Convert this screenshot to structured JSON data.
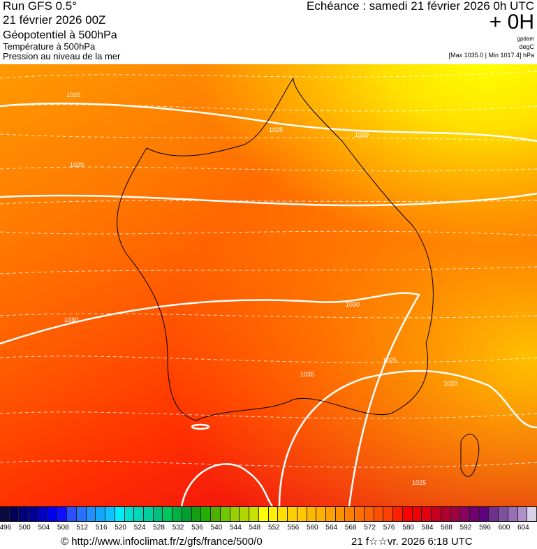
{
  "header": {
    "run": "Run GFS 0.5°",
    "date": "21 février 2026 00Z",
    "param1": "Géopotentiel à 500hPa",
    "param2": "Température à 500hPa",
    "param3": "Pression au niveau de la mer",
    "echeance": "Echéance : samedi 21 février 2026 0h UTC",
    "offset": "+ 0H",
    "unit1": "gpdam",
    "unit2": "degC",
    "minmax": "[Max 1035.0 | Min 1017.4] hPa"
  },
  "map": {
    "contour_labels": [
      "1020",
      "1025",
      "1020",
      "1030",
      "1030",
      "1035",
      "1025",
      "1020",
      "1025",
      "1020"
    ],
    "colors": {
      "top_right": "#ffff00",
      "bottom_left": "#d80018"
    }
  },
  "colorbar": {
    "labels": [
      "496",
      "500",
      "504",
      "508",
      "512",
      "516",
      "520",
      "524",
      "528",
      "532",
      "536",
      "540",
      "544",
      "548",
      "552",
      "556",
      "560",
      "564",
      "568",
      "572",
      "576",
      "580",
      "584",
      "588",
      "592",
      "596",
      "600",
      "604"
    ],
    "colors": [
      "#0a0a40",
      "#000058",
      "#00007a",
      "#000096",
      "#0000c8",
      "#0000f0",
      "#1010ff",
      "#2a50ff",
      "#2870ff",
      "#2090ff",
      "#10a8ff",
      "#10c0ff",
      "#00ecf8",
      "#00e0d0",
      "#00d8b8",
      "#00d0a0",
      "#00c080",
      "#00c860",
      "#00b040",
      "#00a030",
      "#10a010",
      "#20b000",
      "#50b000",
      "#70c800",
      "#98d000",
      "#b0d800",
      "#c8e000",
      "#ffff00",
      "#fff000",
      "#ffe000",
      "#ffd000",
      "#ffc800",
      "#ffb800",
      "#ffb000",
      "#ffa000",
      "#ff9000",
      "#ff8000",
      "#ff7000",
      "#ff6000",
      "#ff5000",
      "#ff4000",
      "#ff2000",
      "#ff0000",
      "#f00000",
      "#e00010",
      "#c80020",
      "#b00030",
      "#a00040",
      "#880060",
      "#700070",
      "#600080",
      "#703090",
      "#8050a0",
      "#9870b8",
      "#b090c8",
      "#d8d0e8"
    ]
  },
  "footer": {
    "url": "© http://www.infoclimat.fr/z/gfs/france/500/0",
    "timestamp": "21 f☆☆vr. 2026  6:18 UTC"
  }
}
